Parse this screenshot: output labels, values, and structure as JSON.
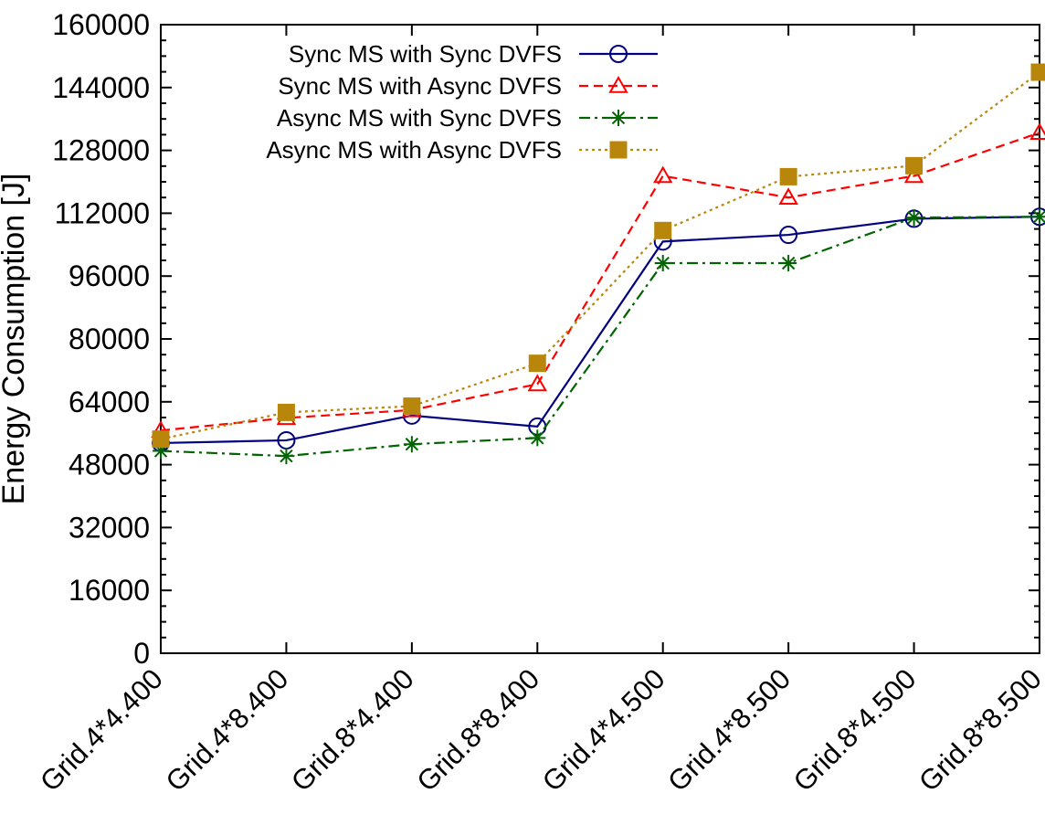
{
  "chart_data": {
    "type": "line",
    "ylabel": "Energy Consumption [J]",
    "categories": [
      "Grid.4*4.400",
      "Grid.4*8.400",
      "Grid.8*4.400",
      "Grid.8*8.400",
      "Grid.4*4.500",
      "Grid.4*8.500",
      "Grid.8*4.500",
      "Grid.8*8.500"
    ],
    "ylim": [
      0,
      160000
    ],
    "yticks": [
      "0",
      "16000",
      "32000",
      "48000",
      "64000",
      "80000",
      "96000",
      "112000",
      "128000",
      "144000",
      "160000"
    ],
    "grid": false,
    "legend_position": "top-left",
    "series": [
      {
        "name": "Sync MS with Sync DVFS",
        "color": "#000080",
        "dash": "",
        "marker": "circle",
        "values": [
          53500,
          54200,
          60500,
          57700,
          104800,
          106500,
          110600,
          111100
        ]
      },
      {
        "name": "Sync MS with Async DVFS",
        "color": "#ff0000",
        "dash": "10,6",
        "marker": "triangle",
        "values": [
          56700,
          59900,
          61900,
          68500,
          121500,
          116000,
          121500,
          132500
        ]
      },
      {
        "name": "Async MS with Sync DVFS",
        "color": "#006400",
        "dash": "12,5,3,5",
        "marker": "star",
        "values": [
          51500,
          50200,
          53200,
          54800,
          99300,
          99300,
          110900,
          111100
        ]
      },
      {
        "name": "Async MS with Async DVFS",
        "color": "#b8860b",
        "dash": "3,4",
        "marker": "square",
        "values": [
          54500,
          61300,
          62900,
          73800,
          107600,
          121300,
          124100,
          147900
        ]
      }
    ]
  }
}
